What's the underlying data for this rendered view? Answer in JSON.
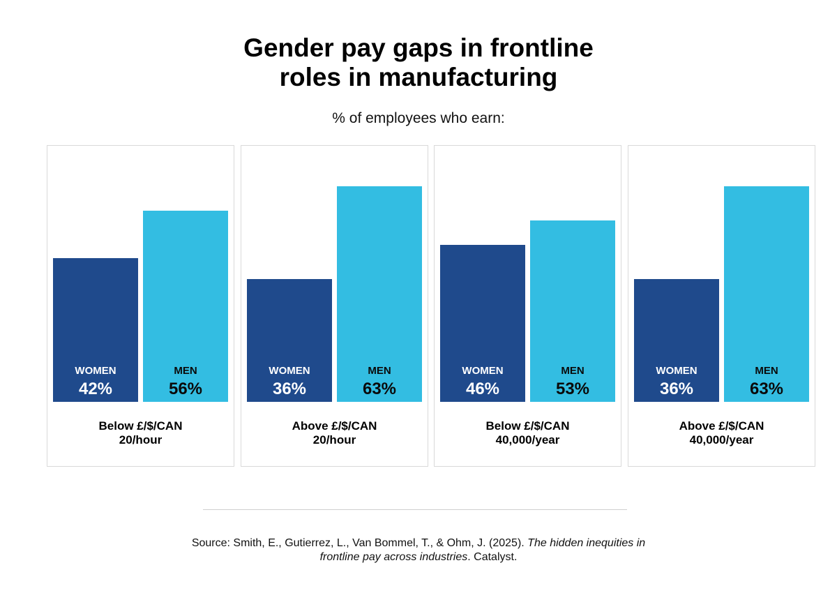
{
  "chart_data": {
    "type": "bar",
    "title": "Gender pay gaps in frontline roles in manufacturing",
    "title_lines": [
      "Gender pay gaps in frontline",
      "roles in manufacturing"
    ],
    "subtitle": "% of employees who earn:",
    "ylim": [
      0,
      70
    ],
    "colors": {
      "women": "#1f4a8c",
      "men": "#33bde2"
    },
    "series_labels": {
      "women": "WOMEN",
      "men": "MEN"
    },
    "panels": [
      {
        "category_lines": [
          "Below £/$/CAN",
          "20/hour"
        ],
        "women": 42,
        "men": 56,
        "women_label": "42%",
        "men_label": "56%"
      },
      {
        "category_lines": [
          "Above £/$/CAN",
          "20/hour"
        ],
        "women": 36,
        "men": 63,
        "women_label": "36%",
        "men_label": "63%"
      },
      {
        "category_lines": [
          "Below £/$/CAN",
          "40,000/year"
        ],
        "women": 46,
        "men": 53,
        "women_label": "46%",
        "men_label": "53%"
      },
      {
        "category_lines": [
          "Above £/$/CAN",
          "40,000/year"
        ],
        "women": 36,
        "men": 63,
        "women_label": "36%",
        "men_label": "63%"
      }
    ]
  },
  "source": {
    "prefix": "Source: Smith, E., Gutierrez, L., Van Bommel, T., & Ohm, J. (2025). ",
    "italic_line1": "The hidden inequities in",
    "italic_line2": "frontline pay across industries",
    "suffix": ". Catalyst."
  }
}
